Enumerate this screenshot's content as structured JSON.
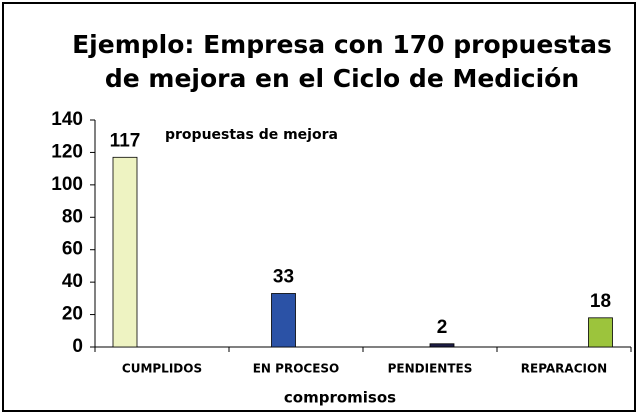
{
  "chart_data": {
    "type": "bar",
    "title": [
      "Ejemplo: Empresa con 170 propuestas",
      "de mejora en el Ciclo de Medición"
    ],
    "annotation": "propuestas de mejora",
    "x_label": "compromisos",
    "categories": [
      "CUMPLIDOS",
      "EN PROCESO",
      "PENDIENTES",
      "REPARACION"
    ],
    "values": [
      117,
      33,
      2,
      18
    ],
    "colors": [
      "#eef3c2",
      "#2b52a6",
      "#1c1c44",
      "#9cc43c"
    ],
    "ylim": [
      0,
      140
    ],
    "yticks": [
      0,
      20,
      40,
      60,
      80,
      100,
      120,
      140
    ]
  }
}
